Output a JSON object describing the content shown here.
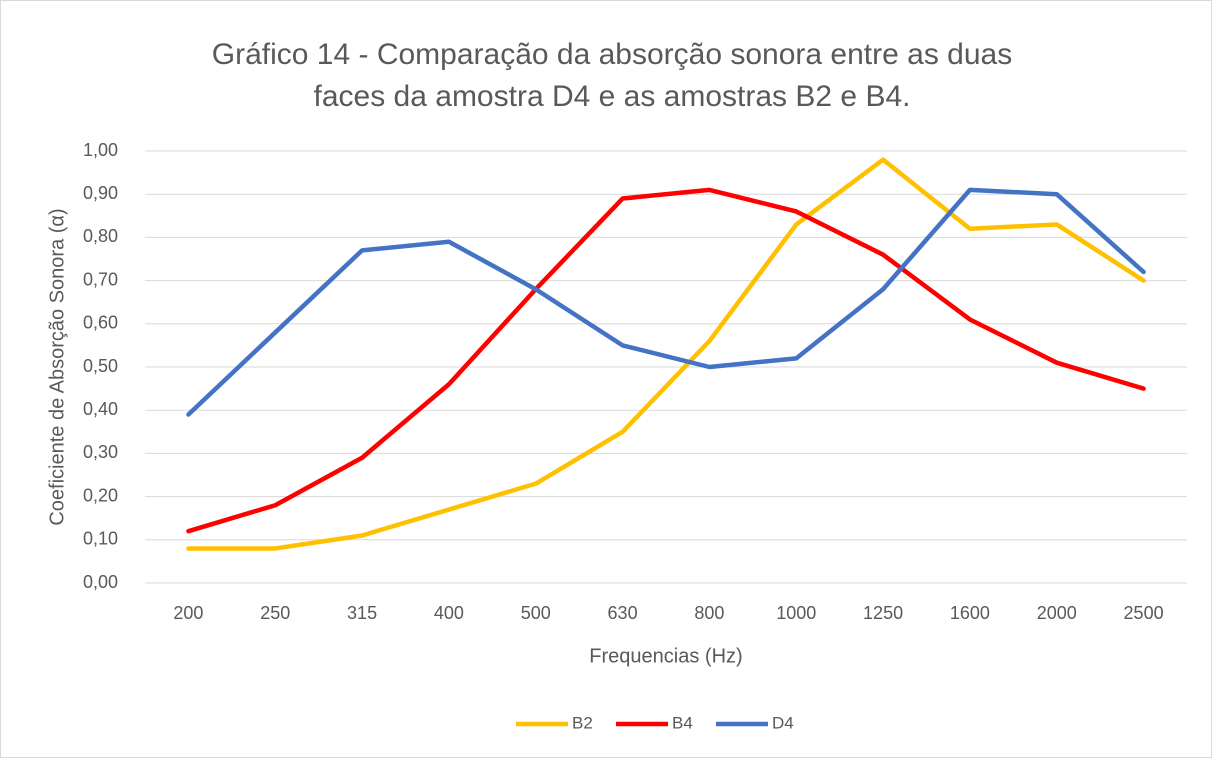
{
  "chart_data": {
    "type": "line",
    "title": [
      "Gráfico 14 - Comparação da absorção sonora entre as duas",
      "faces da amostra D4 e as amostras B2 e B4."
    ],
    "x_label": "Frequencias (Hz)",
    "y_label": "Coeficiente de Absorção Sonora (α)",
    "categories": [
      "200",
      "250",
      "315",
      "400",
      "500",
      "630",
      "800",
      "1000",
      "1250",
      "1600",
      "2000",
      "2500"
    ],
    "series": [
      {
        "name": "B2",
        "color": "#FFC000",
        "values": [
          0.08,
          0.08,
          0.11,
          0.17,
          0.23,
          0.35,
          0.56,
          0.83,
          0.98,
          0.82,
          0.83,
          0.7
        ]
      },
      {
        "name": "B4",
        "color": "#FF0000",
        "values": [
          0.12,
          0.18,
          0.29,
          0.46,
          0.68,
          0.89,
          0.91,
          0.86,
          0.76,
          0.61,
          0.51,
          0.45
        ]
      },
      {
        "name": "D4",
        "color": "#4472C4",
        "values": [
          0.39,
          0.58,
          0.77,
          0.79,
          0.68,
          0.55,
          0.5,
          0.52,
          0.68,
          0.91,
          0.9,
          0.72
        ]
      }
    ],
    "ylim": [
      0,
      1
    ],
    "yticks": [
      {
        "value": 0,
        "label": "0,00"
      },
      {
        "value": 0.1,
        "label": "0,10"
      },
      {
        "value": 0.2,
        "label": "0,20"
      },
      {
        "value": 0.3,
        "label": "0,30"
      },
      {
        "value": 0.4,
        "label": "0,40"
      },
      {
        "value": 0.5,
        "label": "0,50"
      },
      {
        "value": 0.6,
        "label": "0,60"
      },
      {
        "value": 0.7,
        "label": "0,70"
      },
      {
        "value": 0.8,
        "label": "0,80"
      },
      {
        "value": 0.9,
        "label": "0,90"
      },
      {
        "value": 1,
        "label": "1,00"
      }
    ],
    "grid": true,
    "legend": "bottom"
  }
}
